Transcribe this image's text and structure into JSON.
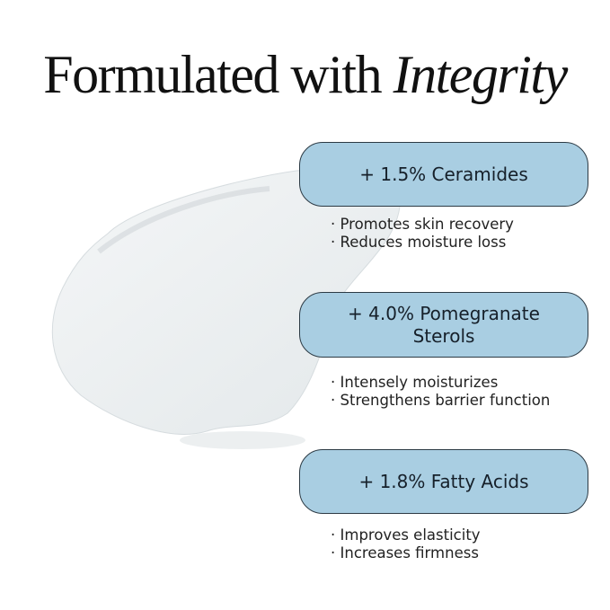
{
  "title": {
    "plain": "Formulated with ",
    "italic": "Integrity"
  },
  "ingredients": [
    {
      "label": "+ 1.5% Ceramides",
      "benefits": [
        "Promotes skin recovery",
        "Reduces moisture loss"
      ]
    },
    {
      "label": "+ 4.0% Pomegranate Sterols",
      "benefits": [
        "Intensely moisturizes",
        "Strengthens barrier function"
      ]
    },
    {
      "label": "+ 1.8% Fatty Acids",
      "benefits": [
        "Improves elasticity",
        "Increases firmness"
      ]
    }
  ],
  "colors": {
    "pill": "#a9cee2",
    "border": "#2c3a44"
  }
}
